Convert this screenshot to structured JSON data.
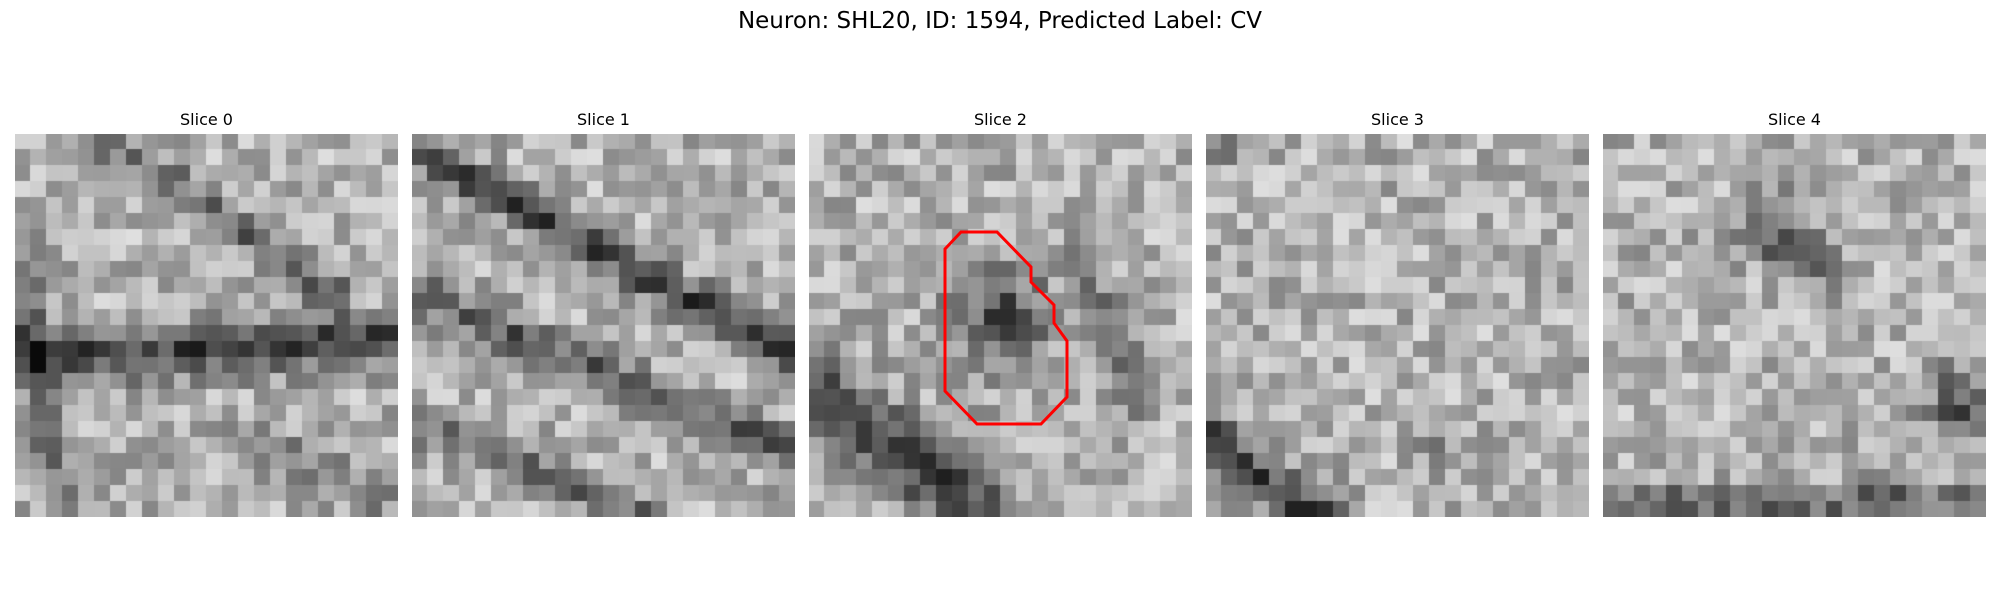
{
  "figure": {
    "title": "Neuron: SHL20, ID: 1594, Predicted Label: CV"
  },
  "slices": [
    {
      "label": "Slice 0"
    },
    {
      "label": "Slice 1"
    },
    {
      "label": "Slice 2"
    },
    {
      "label": "Slice 3"
    },
    {
      "label": "Slice 4"
    }
  ],
  "contour": {
    "slice_index": 2,
    "color": "#ff0000"
  }
}
